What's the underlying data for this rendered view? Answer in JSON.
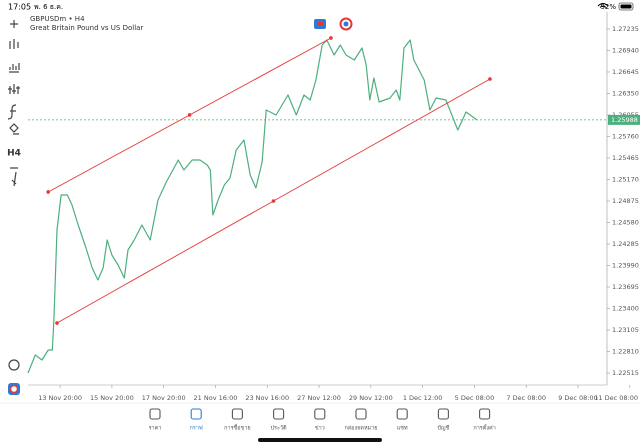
{
  "status_bar": {
    "time": "17:05",
    "date": "พ. 6 ธ.ค.",
    "battery": "92%"
  },
  "left_toolbar": {
    "timeframe": "H4"
  },
  "chart_data": {
    "type": "line",
    "title": "GBPUSDm • H4",
    "subtitle": "Great Britain Pound vs US Dollar",
    "color": "#4caf7d",
    "x": [
      -6.2,
      -4.8,
      -3.5,
      -2.3,
      -1.5,
      -1.2,
      -0.6,
      0.2,
      1.4,
      2.3,
      3.5,
      5.0,
      6.2,
      7.3,
      8.3,
      9.1,
      10.0,
      11.2,
      12.4,
      13.1,
      14.3,
      15.8,
      17.4,
      18.9,
      20.5,
      22.0,
      22.8,
      23.9,
      25.5,
      27.0,
      28.4,
      29.0,
      29.5,
      30.5,
      31.7,
      32.8,
      34.0,
      35.5,
      36.7,
      37.8,
      39.0,
      39.8,
      41.7,
      44.0,
      45.6,
      47.1,
      48.3,
      49.4,
      50.6,
      51.5,
      52.9,
      54.1,
      55.2,
      56.8,
      58.3,
      59.1,
      59.8,
      60.6,
      61.6,
      63.7,
      64.9,
      65.6,
      66.4,
      67.6,
      68.3,
      69.1,
      70.3,
      71.4,
      72.6,
      74.5,
      76.8,
      78.4,
      80.5
    ],
    "values": [
      1.22515,
      1.22762,
      1.22694,
      1.22831,
      1.22831,
      1.23243,
      1.24477,
      1.24958,
      1.24958,
      1.2482,
      1.24546,
      1.2423,
      1.23956,
      1.23791,
      1.23956,
      1.2434,
      1.24134,
      1.23997,
      1.23819,
      1.24203,
      1.2434,
      1.24546,
      1.2434,
      1.24889,
      1.25136,
      1.25328,
      1.25438,
      1.253,
      1.25438,
      1.25438,
      1.25369,
      1.253,
      1.24683,
      1.24889,
      1.25095,
      1.25191,
      1.25575,
      1.25712,
      1.25232,
      1.25054,
      1.2541,
      1.26124,
      1.26055,
      1.2633,
      1.26055,
      1.2633,
      1.26261,
      1.26535,
      1.27015,
      1.27084,
      1.26878,
      1.27015,
      1.26878,
      1.2681,
      1.26974,
      1.26741,
      1.26261,
      1.26563,
      1.26233,
      1.26288,
      1.26398,
      1.26261,
      1.26974,
      1.27084,
      1.2681,
      1.267,
      1.26535,
      1.26124,
      1.26288,
      1.26261,
      1.25849,
      1.26096,
      1.25987
    ],
    "lines": [
      {
        "color": "#e53935",
        "x": [
          -2.3,
          52.3
        ],
        "values": [
          1.24999,
          1.27112
        ]
      },
      {
        "color": "#e53935",
        "x": [
          -0.6,
          83.0
        ],
        "values": [
          1.23201,
          1.26549
        ]
      }
    ],
    "current_price": 1.25988,
    "current_price_color": "#4caf7d",
    "xlim": [
      -6.2,
      105.6
    ],
    "xticks": [
      {
        "value": 0,
        "label": "13 Nov 20:00"
      },
      {
        "value": 10,
        "label": "15 Nov 20:00"
      },
      {
        "value": 20,
        "label": "17 Nov 20:00"
      },
      {
        "value": 30,
        "label": "21 Nov 16:00"
      },
      {
        "value": 40,
        "label": "23 Nov 16:00"
      },
      {
        "value": 50,
        "label": "27 Nov 12:00"
      },
      {
        "value": 60,
        "label": "29 Nov 12:00"
      },
      {
        "value": 70,
        "label": "1 Dec 12:00"
      },
      {
        "value": 80,
        "label": "5 Dec 08:00"
      },
      {
        "value": 90,
        "label": "7 Dec 08:00"
      },
      {
        "value": 100,
        "label": "9 Dec 08:00"
      },
      {
        "value": 110,
        "label": "11 Dec 08:00"
      }
    ],
    "ylim": [
      1.22351,
      1.27468
    ],
    "yticks": [
      1.27235,
      {
        "value": 1.2694,
        "label": "1.26940"
      },
      1.26645,
      {
        "value": 1.2635,
        "label": "1.26350"
      },
      1.26055,
      {
        "value": 1.2576,
        "label": "1.25760"
      },
      1.25465,
      {
        "value": 1.2517,
        "label": "1.25170"
      },
      1.24875,
      {
        "value": 1.2458,
        "label": "1.24580"
      },
      1.24285,
      {
        "value": 1.2399,
        "label": "1.23990"
      },
      1.23695,
      {
        "value": 1.234,
        "label": "1.23400"
      },
      1.23105,
      {
        "value": 1.2281,
        "label": "1.22810"
      },
      1.22515
    ],
    "grid": false
  },
  "tab_bar": {
    "active": 1,
    "tabs": [
      "ราคา",
      "กราฟ",
      "การซื้อขาย",
      "ประวัติ",
      "ข่าว",
      "กล่องจดหมาย",
      "แชท",
      "บัญชี",
      "การตั้งค่า"
    ]
  }
}
